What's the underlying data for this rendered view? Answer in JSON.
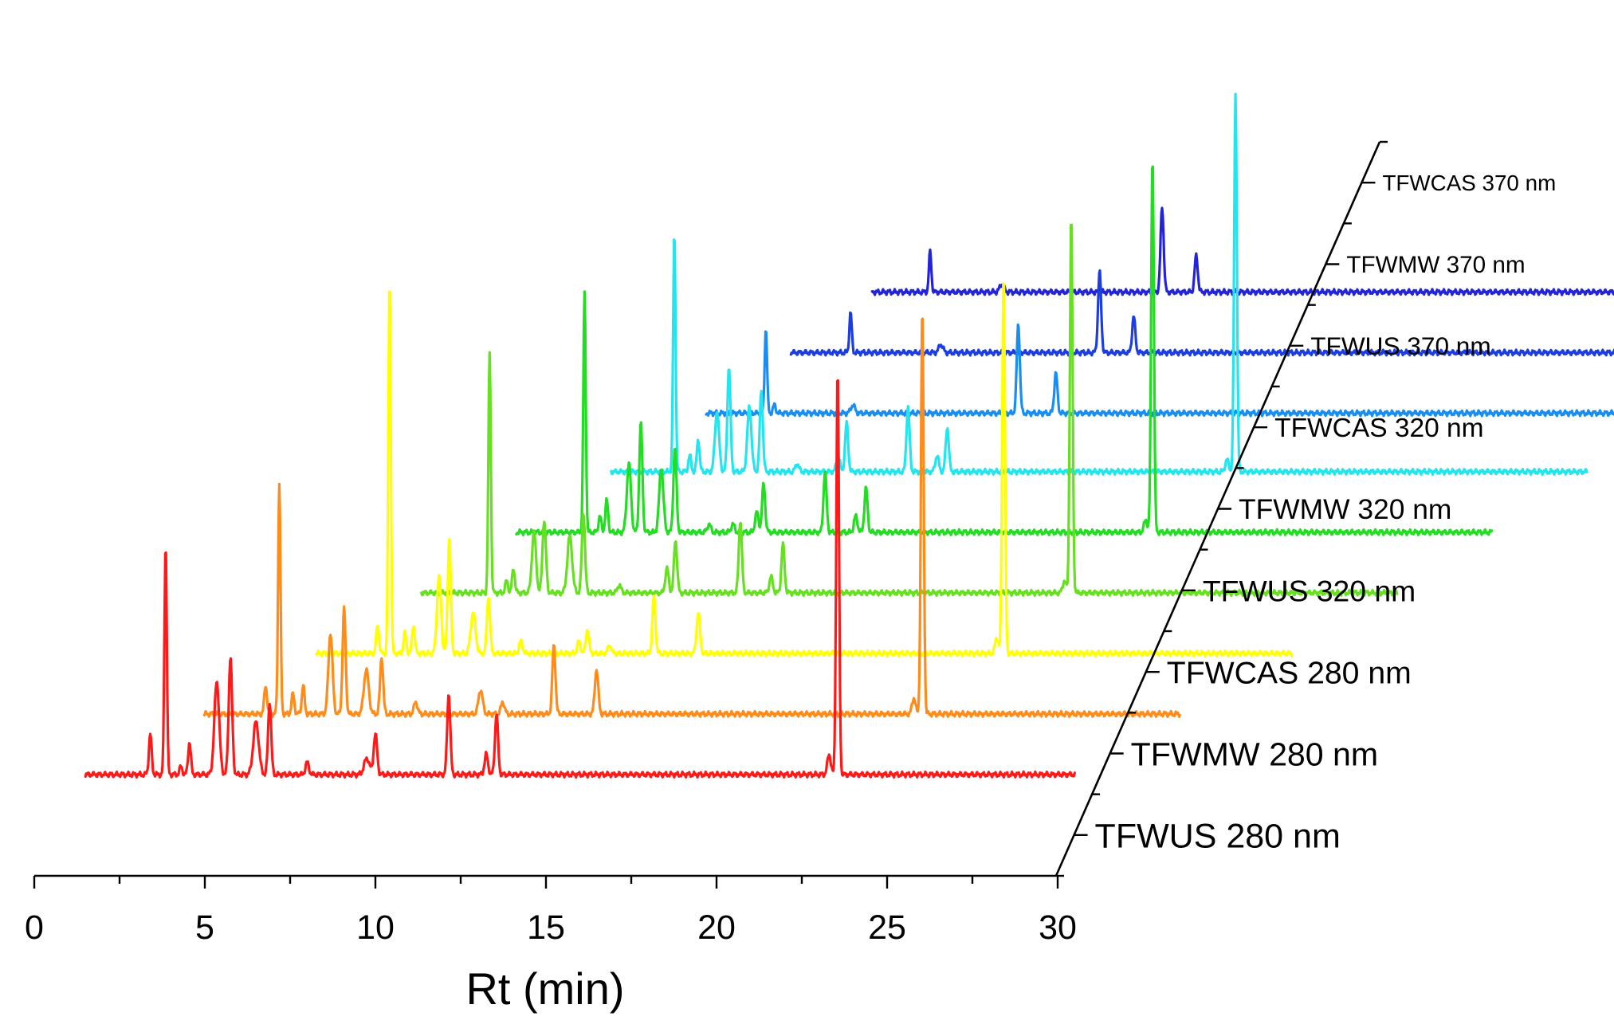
{
  "chart_data": {
    "type": "line",
    "subtype": "3d-waterfall",
    "title": "",
    "xlabel": "Rt (min)",
    "ylabel": "",
    "xlim": [
      0,
      30
    ],
    "xticks": [
      "0",
      "5",
      "10",
      "15",
      "20",
      "25",
      "30"
    ],
    "grid": false,
    "series": [
      {
        "name": "TFWUS 280 nm",
        "color": "#ff1a1a",
        "x_range": [
          1.5,
          30.5
        ],
        "baseline": 0.01,
        "peaks": [
          {
            "x": 3.4,
            "h": 0.1,
            "w": 0.04
          },
          {
            "x": 3.85,
            "h": 0.57,
            "w": 0.035
          },
          {
            "x": 4.3,
            "h": 0.02,
            "w": 0.04
          },
          {
            "x": 4.55,
            "h": 0.08,
            "w": 0.04
          },
          {
            "x": 5.35,
            "h": 0.23,
            "w": 0.07
          },
          {
            "x": 5.75,
            "h": 0.29,
            "w": 0.05
          },
          {
            "x": 6.5,
            "h": 0.13,
            "w": 0.08
          },
          {
            "x": 6.9,
            "h": 0.18,
            "w": 0.045
          },
          {
            "x": 8.0,
            "h": 0.03,
            "w": 0.05
          },
          {
            "x": 9.75,
            "h": 0.04,
            "w": 0.08
          },
          {
            "x": 10.0,
            "h": 0.1,
            "w": 0.05
          },
          {
            "x": 12.15,
            "h": 0.2,
            "w": 0.045
          },
          {
            "x": 13.25,
            "h": 0.05,
            "w": 0.05
          },
          {
            "x": 13.55,
            "h": 0.15,
            "w": 0.045
          },
          {
            "x": 23.3,
            "h": 0.05,
            "w": 0.05
          },
          {
            "x": 23.55,
            "h": 1.0,
            "w": 0.04
          }
        ]
      },
      {
        "name": "TFWMW 280 nm",
        "color": "#ff8c1a",
        "x_range": [
          4.2,
          32.8
        ],
        "baseline": 0.01,
        "peaks": [
          {
            "x": 6.0,
            "h": 0.07,
            "w": 0.04
          },
          {
            "x": 6.4,
            "h": 0.57,
            "w": 0.035
          },
          {
            "x": 6.8,
            "h": 0.05,
            "w": 0.04
          },
          {
            "x": 7.1,
            "h": 0.07,
            "w": 0.04
          },
          {
            "x": 7.9,
            "h": 0.2,
            "w": 0.06
          },
          {
            "x": 8.3,
            "h": 0.26,
            "w": 0.045
          },
          {
            "x": 8.95,
            "h": 0.11,
            "w": 0.07
          },
          {
            "x": 9.4,
            "h": 0.14,
            "w": 0.045
          },
          {
            "x": 10.4,
            "h": 0.03,
            "w": 0.05
          },
          {
            "x": 12.3,
            "h": 0.06,
            "w": 0.06
          },
          {
            "x": 12.95,
            "h": 0.03,
            "w": 0.05
          },
          {
            "x": 14.45,
            "h": 0.17,
            "w": 0.045
          },
          {
            "x": 15.7,
            "h": 0.11,
            "w": 0.05
          },
          {
            "x": 25.0,
            "h": 0.04,
            "w": 0.05
          },
          {
            "x": 25.25,
            "h": 1.0,
            "w": 0.04
          }
        ]
      },
      {
        "name": "TFWCAS 280 nm",
        "color": "#ffff00",
        "x_range": [
          6.7,
          35.3
        ],
        "baseline": 0.01,
        "peaks": [
          {
            "x": 8.5,
            "h": 0.07,
            "w": 0.04
          },
          {
            "x": 8.85,
            "h": 0.93,
            "w": 0.035
          },
          {
            "x": 9.3,
            "h": 0.05,
            "w": 0.04
          },
          {
            "x": 9.55,
            "h": 0.07,
            "w": 0.04
          },
          {
            "x": 10.3,
            "h": 0.19,
            "w": 0.06
          },
          {
            "x": 10.6,
            "h": 0.28,
            "w": 0.045
          },
          {
            "x": 11.3,
            "h": 0.1,
            "w": 0.07
          },
          {
            "x": 11.75,
            "h": 0.14,
            "w": 0.045
          },
          {
            "x": 12.7,
            "h": 0.03,
            "w": 0.05
          },
          {
            "x": 14.4,
            "h": 0.03,
            "w": 0.05
          },
          {
            "x": 14.65,
            "h": 0.06,
            "w": 0.045
          },
          {
            "x": 15.3,
            "h": 0.02,
            "w": 0.05
          },
          {
            "x": 16.6,
            "h": 0.14,
            "w": 0.045
          },
          {
            "x": 17.9,
            "h": 0.1,
            "w": 0.05
          },
          {
            "x": 26.65,
            "h": 0.04,
            "w": 0.05
          },
          {
            "x": 26.85,
            "h": 0.94,
            "w": 0.04
          }
        ]
      },
      {
        "name": "TFWUS 320 nm",
        "color": "#66e020",
        "x_range": [
          9.0,
          37.6
        ],
        "baseline": 0.01,
        "peaks": [
          {
            "x": 11.0,
            "h": 0.59,
            "w": 0.035
          },
          {
            "x": 11.5,
            "h": 0.03,
            "w": 0.04
          },
          {
            "x": 11.7,
            "h": 0.06,
            "w": 0.04
          },
          {
            "x": 12.3,
            "h": 0.15,
            "w": 0.06
          },
          {
            "x": 12.6,
            "h": 0.18,
            "w": 0.05
          },
          {
            "x": 13.35,
            "h": 0.14,
            "w": 0.07
          },
          {
            "x": 13.75,
            "h": 0.2,
            "w": 0.045
          },
          {
            "x": 14.8,
            "h": 0.02,
            "w": 0.05
          },
          {
            "x": 16.2,
            "h": 0.06,
            "w": 0.05
          },
          {
            "x": 16.45,
            "h": 0.13,
            "w": 0.045
          },
          {
            "x": 18.35,
            "h": 0.18,
            "w": 0.045
          },
          {
            "x": 19.25,
            "h": 0.04,
            "w": 0.05
          },
          {
            "x": 19.6,
            "h": 0.12,
            "w": 0.045
          },
          {
            "x": 27.85,
            "h": 0.03,
            "w": 0.05
          },
          {
            "x": 28.05,
            "h": 0.93,
            "w": 0.04
          }
        ]
      },
      {
        "name": "TFWMW 320 nm",
        "color": "#22dd22",
        "x_range": [
          11.0,
          39.6
        ],
        "baseline": 0.01,
        "peaks": [
          {
            "x": 13.0,
            "h": 0.59,
            "w": 0.035
          },
          {
            "x": 13.45,
            "h": 0.04,
            "w": 0.04
          },
          {
            "x": 13.65,
            "h": 0.08,
            "w": 0.04
          },
          {
            "x": 14.3,
            "h": 0.17,
            "w": 0.06
          },
          {
            "x": 14.65,
            "h": 0.27,
            "w": 0.045
          },
          {
            "x": 15.25,
            "h": 0.16,
            "w": 0.06
          },
          {
            "x": 15.65,
            "h": 0.21,
            "w": 0.045
          },
          {
            "x": 16.65,
            "h": 0.02,
            "w": 0.05
          },
          {
            "x": 17.35,
            "h": 0.02,
            "w": 0.05
          },
          {
            "x": 18.05,
            "h": 0.05,
            "w": 0.05
          },
          {
            "x": 18.25,
            "h": 0.12,
            "w": 0.045
          },
          {
            "x": 20.05,
            "h": 0.15,
            "w": 0.045
          },
          {
            "x": 20.95,
            "h": 0.04,
            "w": 0.05
          },
          {
            "x": 21.25,
            "h": 0.11,
            "w": 0.045
          },
          {
            "x": 29.45,
            "h": 0.03,
            "w": 0.05
          },
          {
            "x": 29.65,
            "h": 0.93,
            "w": 0.04
          }
        ]
      },
      {
        "name": "TFWCAS 320 nm",
        "color": "#22e5f0",
        "x_range": [
          13.0,
          41.6
        ],
        "baseline": 0.01,
        "peaks": [
          {
            "x": 14.85,
            "h": 0.59,
            "w": 0.035
          },
          {
            "x": 15.3,
            "h": 0.04,
            "w": 0.04
          },
          {
            "x": 15.55,
            "h": 0.08,
            "w": 0.04
          },
          {
            "x": 16.1,
            "h": 0.15,
            "w": 0.06
          },
          {
            "x": 16.45,
            "h": 0.26,
            "w": 0.045
          },
          {
            "x": 17.05,
            "h": 0.16,
            "w": 0.06
          },
          {
            "x": 17.4,
            "h": 0.2,
            "w": 0.045
          },
          {
            "x": 18.45,
            "h": 0.02,
            "w": 0.05
          },
          {
            "x": 19.65,
            "h": 0.04,
            "w": 0.05
          },
          {
            "x": 19.9,
            "h": 0.12,
            "w": 0.045
          },
          {
            "x": 21.7,
            "h": 0.16,
            "w": 0.045
          },
          {
            "x": 22.55,
            "h": 0.04,
            "w": 0.05
          },
          {
            "x": 22.85,
            "h": 0.11,
            "w": 0.045
          },
          {
            "x": 31.05,
            "h": 0.03,
            "w": 0.05
          },
          {
            "x": 31.3,
            "h": 0.93,
            "w": 0.04
          }
        ]
      },
      {
        "name": "TFWUS 370 nm",
        "color": "#1a8ef0",
        "x_range": [
          15.0,
          43.6
        ],
        "baseline": 0.005,
        "peaks": [
          {
            "x": 16.75,
            "h": 0.21,
            "w": 0.035
          },
          {
            "x": 17.0,
            "h": 0.02,
            "w": 0.04
          },
          {
            "x": 19.3,
            "h": 0.02,
            "w": 0.06
          },
          {
            "x": 24.15,
            "h": 0.22,
            "w": 0.045
          },
          {
            "x": 25.25,
            "h": 0.1,
            "w": 0.045
          }
        ]
      },
      {
        "name": "TFWMW 370 nm",
        "color": "#1c3ee0",
        "x_range": [
          16.7,
          45.3
        ],
        "baseline": 0.005,
        "peaks": [
          {
            "x": 18.45,
            "h": 0.1,
            "w": 0.035
          },
          {
            "x": 21.1,
            "h": 0.02,
            "w": 0.06
          },
          {
            "x": 25.75,
            "h": 0.2,
            "w": 0.045
          },
          {
            "x": 26.75,
            "h": 0.09,
            "w": 0.045
          }
        ]
      },
      {
        "name": "TFWCAS 370 nm",
        "color": "#2323d8",
        "x_range": [
          18.3,
          46.9
        ],
        "baseline": 0.005,
        "peaks": [
          {
            "x": 20.0,
            "h": 0.1,
            "w": 0.035
          },
          {
            "x": 22.1,
            "h": 0.02,
            "w": 0.06
          },
          {
            "x": 26.8,
            "h": 0.21,
            "w": 0.045
          },
          {
            "x": 27.8,
            "h": 0.09,
            "w": 0.045
          }
        ]
      }
    ]
  }
}
